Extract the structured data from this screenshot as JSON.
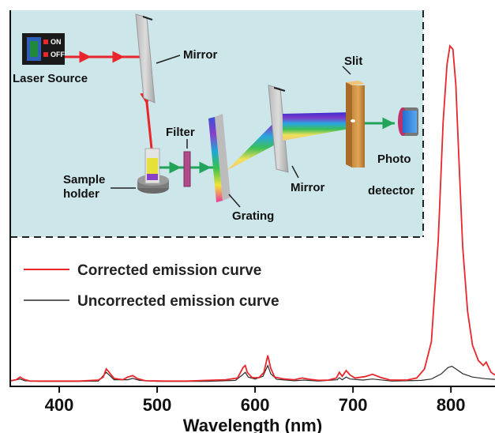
{
  "chart_data": {
    "type": "line",
    "title": "",
    "xlabel": "Wavelength (nm)",
    "ylabel": "",
    "xlim": [
      350,
      845
    ],
    "ylim": [
      0,
      1
    ],
    "x_ticks": [
      400,
      500,
      600,
      700,
      800
    ],
    "grid": false,
    "legend_position": "left",
    "series": [
      {
        "name": "Corrected emission curve",
        "color": "#e8262b",
        "points": [
          [
            350,
            0.005
          ],
          [
            356,
            0.008
          ],
          [
            360,
            0.016
          ],
          [
            364,
            0.009
          ],
          [
            370,
            0.004
          ],
          [
            390,
            0.004
          ],
          [
            420,
            0.004
          ],
          [
            440,
            0.007
          ],
          [
            445,
            0.016
          ],
          [
            448,
            0.04
          ],
          [
            451,
            0.03
          ],
          [
            456,
            0.012
          ],
          [
            465,
            0.008
          ],
          [
            470,
            0.016
          ],
          [
            475,
            0.02
          ],
          [
            480,
            0.011
          ],
          [
            488,
            0.005
          ],
          [
            510,
            0.004
          ],
          [
            530,
            0.004
          ],
          [
            550,
            0.006
          ],
          [
            570,
            0.008
          ],
          [
            582,
            0.013
          ],
          [
            588,
            0.045
          ],
          [
            590,
            0.05
          ],
          [
            592,
            0.03
          ],
          [
            597,
            0.014
          ],
          [
            604,
            0.014
          ],
          [
            609,
            0.03
          ],
          [
            613,
            0.08
          ],
          [
            616,
            0.042
          ],
          [
            620,
            0.016
          ],
          [
            630,
            0.01
          ],
          [
            640,
            0.008
          ],
          [
            648,
            0.013
          ],
          [
            656,
            0.009
          ],
          [
            665,
            0.006
          ],
          [
            675,
            0.007
          ],
          [
            683,
            0.013
          ],
          [
            686,
            0.03
          ],
          [
            689,
            0.018
          ],
          [
            693,
            0.035
          ],
          [
            697,
            0.022
          ],
          [
            702,
            0.013
          ],
          [
            712,
            0.017
          ],
          [
            720,
            0.024
          ],
          [
            728,
            0.015
          ],
          [
            738,
            0.007
          ],
          [
            755,
            0.007
          ],
          [
            765,
            0.013
          ],
          [
            773,
            0.04
          ],
          [
            780,
            0.12
          ],
          [
            787,
            0.42
          ],
          [
            792,
            0.77
          ],
          [
            796,
            0.94
          ],
          [
            799,
            0.995
          ],
          [
            802,
            0.985
          ],
          [
            805,
            0.88
          ],
          [
            808,
            0.67
          ],
          [
            812,
            0.4
          ],
          [
            817,
            0.21
          ],
          [
            822,
            0.11
          ],
          [
            828,
            0.065
          ],
          [
            833,
            0.05
          ],
          [
            836,
            0.06
          ],
          [
            838,
            0.048
          ],
          [
            841,
            0.03
          ],
          [
            845,
            0.022
          ]
        ]
      },
      {
        "name": "Uncorrected emission curve",
        "color": "#2b2b2b",
        "points": [
          [
            350,
            0.004
          ],
          [
            360,
            0.01
          ],
          [
            365,
            0.005
          ],
          [
            380,
            0.003
          ],
          [
            420,
            0.003
          ],
          [
            440,
            0.004
          ],
          [
            448,
            0.03
          ],
          [
            451,
            0.022
          ],
          [
            456,
            0.008
          ],
          [
            470,
            0.008
          ],
          [
            475,
            0.012
          ],
          [
            482,
            0.006
          ],
          [
            500,
            0.003
          ],
          [
            550,
            0.003
          ],
          [
            580,
            0.006
          ],
          [
            587,
            0.022
          ],
          [
            590,
            0.03
          ],
          [
            593,
            0.016
          ],
          [
            600,
            0.01
          ],
          [
            608,
            0.018
          ],
          [
            613,
            0.05
          ],
          [
            616,
            0.026
          ],
          [
            622,
            0.009
          ],
          [
            640,
            0.005
          ],
          [
            650,
            0.007
          ],
          [
            665,
            0.004
          ],
          [
            684,
            0.008
          ],
          [
            686,
            0.014
          ],
          [
            689,
            0.008
          ],
          [
            693,
            0.016
          ],
          [
            697,
            0.01
          ],
          [
            710,
            0.007
          ],
          [
            720,
            0.01
          ],
          [
            740,
            0.004
          ],
          [
            770,
            0.006
          ],
          [
            780,
            0.01
          ],
          [
            790,
            0.025
          ],
          [
            797,
            0.044
          ],
          [
            801,
            0.048
          ],
          [
            805,
            0.04
          ],
          [
            812,
            0.026
          ],
          [
            822,
            0.016
          ],
          [
            835,
            0.011
          ],
          [
            845,
            0.009
          ]
        ]
      }
    ]
  },
  "inset": {
    "labels": {
      "laser_source": "Laser Source",
      "switch_on": "ON",
      "switch_off": "OFF",
      "mirror_1": "Mirror",
      "filter": "Filter",
      "sample_holder_line1": "Sample",
      "sample_holder_line2": "holder",
      "grating": "Grating",
      "mirror_2": "Mirror",
      "slit": "Slit",
      "photo_detector_line1": "Photo",
      "photo_detector_line2": "detector"
    },
    "colors": {
      "background": "#cde6ea",
      "laser_beam": "#e8262b",
      "filtered_beam": "#22a35a"
    }
  }
}
